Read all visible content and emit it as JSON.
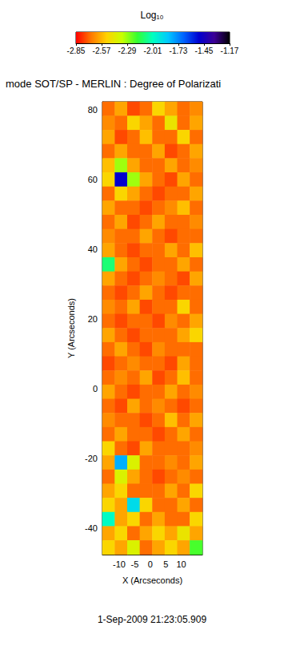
{
  "chart_data": {
    "type": "heatmap",
    "title": "mode SOT/SP - MERLIN : Degree of Polarizati",
    "annotations": [
      "1-Sep-2009 21:23:05.909"
    ],
    "x_label": "X (Arcseconds)",
    "y_label": "Y (Arcseconds)",
    "xlim": [
      -15.4,
      16.8
    ],
    "xticks": [
      -10,
      -5,
      0,
      5,
      10
    ],
    "ylim": [
      -47.5,
      82.3
    ],
    "yticks": [
      -40,
      -20,
      0,
      20,
      40,
      60,
      80
    ],
    "grid": false,
    "colorbar": {
      "title": "Log₁₀",
      "range": [
        -2.85,
        -1.17
      ],
      "ticks": [
        -2.85,
        -2.57,
        -2.29,
        -2.01,
        -1.73,
        -1.45,
        -1.17
      ],
      "colors": [
        "#ff0000",
        "#ff7a00",
        "#ffd200",
        "#c8ff00",
        "#33ff33",
        "#00ffc0",
        "#00c8ff",
        "#0064ff",
        "#0000d0",
        "#3c0096",
        "#000000"
      ]
    },
    "cells": [
      [
        -2.7,
        -2.6,
        -2.75,
        -2.7,
        -2.5,
        -2.6,
        -2.7,
        -2.65
      ],
      [
        -2.65,
        -2.7,
        -2.5,
        -2.6,
        -2.7,
        -2.45,
        -2.7,
        -2.6
      ],
      [
        -2.6,
        -2.75,
        -2.7,
        -2.55,
        -2.7,
        -2.7,
        -2.5,
        -2.7
      ],
      [
        -2.7,
        -2.6,
        -2.7,
        -2.7,
        -2.6,
        -2.75,
        -2.7,
        -2.6
      ],
      [
        -2.55,
        -2.3,
        -2.6,
        -2.7,
        -2.7,
        -2.6,
        -2.7,
        -2.65
      ],
      [
        -2.5,
        -1.5,
        -2.3,
        -2.6,
        -2.7,
        -2.75,
        -2.6,
        -2.7
      ],
      [
        -2.7,
        -2.5,
        -2.6,
        -2.7,
        -2.75,
        -2.7,
        -2.7,
        -2.6
      ],
      [
        -2.6,
        -2.7,
        -2.7,
        -2.75,
        -2.7,
        -2.65,
        -2.55,
        -2.7
      ],
      [
        -2.7,
        -2.6,
        -2.75,
        -2.7,
        -2.6,
        -2.7,
        -2.7,
        -2.65
      ],
      [
        -2.65,
        -2.7,
        -2.7,
        -2.6,
        -2.7,
        -2.75,
        -2.7,
        -2.7
      ],
      [
        -2.6,
        -2.7,
        -2.75,
        -2.7,
        -2.7,
        -2.6,
        -2.7,
        -2.55
      ],
      [
        -2.1,
        -2.6,
        -2.7,
        -2.75,
        -2.7,
        -2.7,
        -2.6,
        -2.7
      ],
      [
        -2.6,
        -2.7,
        -2.75,
        -2.7,
        -2.65,
        -2.7,
        -2.75,
        -2.6
      ],
      [
        -2.7,
        -2.75,
        -2.7,
        -2.6,
        -2.7,
        -2.75,
        -2.7,
        -2.7
      ],
      [
        -2.65,
        -2.7,
        -2.6,
        -2.75,
        -2.7,
        -2.7,
        -2.5,
        -2.7
      ],
      [
        -2.7,
        -2.75,
        -2.7,
        -2.7,
        -2.75,
        -2.65,
        -2.7,
        -2.6
      ],
      [
        -2.6,
        -2.7,
        -2.75,
        -2.7,
        -2.7,
        -2.7,
        -2.6,
        -2.5
      ],
      [
        -2.7,
        -2.6,
        -2.7,
        -2.75,
        -2.65,
        -2.7,
        -2.7,
        -2.7
      ],
      [
        -2.75,
        -2.7,
        -2.65,
        -2.7,
        -2.7,
        -2.75,
        -2.6,
        -2.7
      ],
      [
        -2.7,
        -2.65,
        -2.7,
        -2.6,
        -2.75,
        -2.7,
        -2.55,
        -2.7
      ],
      [
        -2.6,
        -2.7,
        -2.75,
        -2.7,
        -2.7,
        -2.6,
        -2.7,
        -2.65
      ],
      [
        -2.7,
        -2.75,
        -2.6,
        -2.7,
        -2.65,
        -2.7,
        -2.75,
        -2.7
      ],
      [
        -2.65,
        -2.7,
        -2.7,
        -2.75,
        -2.7,
        -2.55,
        -2.7,
        -2.6
      ],
      [
        -2.7,
        -2.6,
        -2.7,
        -2.7,
        -2.75,
        -2.7,
        -2.6,
        -2.7
      ],
      [
        -2.5,
        -2.7,
        -2.75,
        -2.6,
        -2.7,
        -2.7,
        -2.7,
        -2.65
      ],
      [
        -2.6,
        -1.8,
        -2.4,
        -2.7,
        -2.7,
        -2.65,
        -2.7,
        -2.6
      ],
      [
        -2.7,
        -2.4,
        -2.6,
        -2.7,
        -2.75,
        -2.7,
        -2.65,
        -2.7
      ],
      [
        -2.6,
        -2.5,
        -2.7,
        -2.7,
        -2.7,
        -2.6,
        -2.7,
        -2.5
      ],
      [
        -2.5,
        -2.6,
        -1.9,
        -2.5,
        -2.7,
        -2.7,
        -2.6,
        -2.7
      ],
      [
        -2.0,
        -2.6,
        -2.5,
        -2.7,
        -2.6,
        -2.7,
        -2.7,
        -2.5
      ],
      [
        -2.6,
        -2.5,
        -2.7,
        -2.6,
        -2.5,
        -2.6,
        -2.45,
        -2.6
      ],
      [
        -2.5,
        -2.6,
        -2.4,
        -2.7,
        -2.6,
        -2.5,
        -2.6,
        -2.2
      ]
    ]
  }
}
